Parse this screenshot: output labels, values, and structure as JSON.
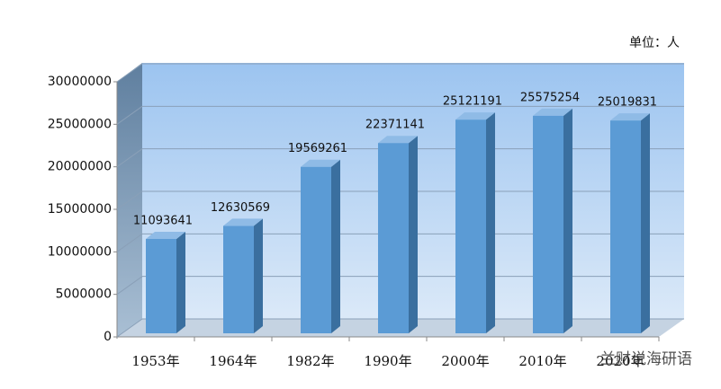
{
  "chart_data": {
    "type": "bar3d",
    "unit_label": "单位：人",
    "watermark": "兰财说海研语",
    "categories": [
      "1953年",
      "1964年",
      "1982年",
      "1990年",
      "2000年",
      "2010年",
      "2020年"
    ],
    "values": [
      11093641,
      12630569,
      19569261,
      22371141,
      25121191,
      25575254,
      25019831
    ],
    "color": "#5b9bd5",
    "ylim": [
      0,
      30000000
    ],
    "yticks": [
      0,
      5000000,
      10000000,
      15000000,
      20000000,
      25000000,
      30000000
    ],
    "grid": true
  }
}
